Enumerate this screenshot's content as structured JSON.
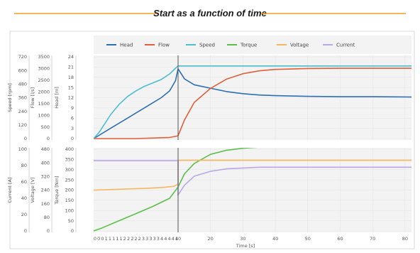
{
  "title": "Start as a function of time",
  "colors": {
    "title_rule": "#f0a020",
    "head": "#2c6fb5",
    "flow": "#e0603a",
    "speed": "#4dbdd0",
    "torque": "#5cbf4a",
    "voltage": "#f5b860",
    "current": "#b8a8e8",
    "panel_bg": "#f3f3f3",
    "grid": "#e3e3e3",
    "marker": "#555555"
  },
  "chart_data": {
    "type": "line",
    "legend": [
      "Head",
      "Flow",
      "Speed",
      "Torque",
      "Voltage",
      "Current"
    ],
    "legend_placement": "top",
    "x": {
      "label": "Time [s]",
      "startup_ticks": [
        "0",
        "0",
        "0",
        "1",
        "1",
        "1",
        "1",
        "1",
        "2",
        "2",
        "2",
        "2",
        "2",
        "3",
        "3",
        "3",
        "3",
        "3",
        "4",
        "4",
        "4",
        "4",
        "4"
      ],
      "ticks": [
        10,
        20,
        30,
        40,
        50,
        60,
        70,
        80
      ],
      "range": [
        0,
        82
      ]
    },
    "top_axes": [
      {
        "label": "Speed [rpm]",
        "ticks": [
          720,
          600,
          480,
          360,
          240,
          120,
          0
        ]
      },
      {
        "label": "Flow [l/s]",
        "ticks": [
          3500,
          3000,
          2500,
          2000,
          1500,
          1000,
          500,
          0.0
        ]
      },
      {
        "label": "Head [m]",
        "ticks": [
          24,
          21,
          18,
          15,
          12,
          9,
          6,
          3,
          0
        ]
      }
    ],
    "bottom_axes": [
      {
        "label": "Current [A]",
        "ticks": [
          100,
          80,
          60,
          40,
          20,
          0
        ]
      },
      {
        "label": "Voltage [V]",
        "ticks": [
          480,
          400,
          320,
          240,
          160,
          80,
          0
        ]
      },
      {
        "label": "Torque [Nm]",
        "ticks": [
          400,
          350,
          300,
          250,
          200,
          150,
          100,
          50,
          0
        ]
      }
    ],
    "series": [
      {
        "name": "Head",
        "panel": "top",
        "axis": "Head [m]",
        "startup": [
          [
            0,
            0
          ],
          [
            1,
            1.5
          ],
          [
            2,
            3
          ],
          [
            3,
            4.5
          ],
          [
            4,
            6
          ],
          [
            5,
            7.5
          ],
          [
            6,
            9
          ],
          [
            7,
            10.5
          ],
          [
            8,
            12
          ],
          [
            9,
            14
          ],
          [
            9.7,
            17
          ],
          [
            10,
            20.5
          ]
        ],
        "run": [
          [
            10,
            20.5
          ],
          [
            12,
            17.5
          ],
          [
            15,
            15.8
          ],
          [
            20,
            14.8
          ],
          [
            25,
            13.8
          ],
          [
            30,
            13.2
          ],
          [
            35,
            12.8
          ],
          [
            40,
            12.6
          ],
          [
            50,
            12.4
          ],
          [
            60,
            12.3
          ],
          [
            70,
            12.3
          ],
          [
            82,
            12.2
          ]
        ]
      },
      {
        "name": "Flow",
        "panel": "top",
        "axis": "Flow [l/s]",
        "startup": [
          [
            0,
            0
          ],
          [
            5,
            0
          ],
          [
            9,
            50
          ],
          [
            10,
            120
          ]
        ],
        "run": [
          [
            10,
            120
          ],
          [
            12,
            800
          ],
          [
            15,
            1550
          ],
          [
            20,
            2150
          ],
          [
            25,
            2550
          ],
          [
            30,
            2780
          ],
          [
            35,
            2900
          ],
          [
            40,
            2960
          ],
          [
            50,
            3000
          ],
          [
            60,
            3010
          ],
          [
            70,
            3010
          ],
          [
            82,
            3010
          ]
        ]
      },
      {
        "name": "Speed",
        "panel": "top",
        "axis": "Speed [rpm]",
        "startup": [
          [
            0,
            0
          ],
          [
            0.7,
            60
          ],
          [
            2,
            210
          ],
          [
            3,
            300
          ],
          [
            4,
            370
          ],
          [
            5,
            420
          ],
          [
            6,
            460
          ],
          [
            7,
            490
          ],
          [
            8,
            520
          ],
          [
            9,
            570
          ],
          [
            9.7,
            620
          ],
          [
            10,
            640
          ]
        ],
        "run": [
          [
            10,
            640
          ],
          [
            82,
            640
          ]
        ]
      },
      {
        "name": "Torque",
        "panel": "bottom",
        "axis": "Torque [Nm]",
        "startup": [
          [
            0,
            0
          ],
          [
            1,
            15
          ],
          [
            3,
            50
          ],
          [
            5,
            85
          ],
          [
            7,
            120
          ],
          [
            9,
            160
          ],
          [
            10,
            215
          ]
        ],
        "run": [
          [
            10,
            215
          ],
          [
            12,
            280
          ],
          [
            15,
            330
          ],
          [
            20,
            375
          ],
          [
            25,
            395
          ],
          [
            30,
            405
          ],
          [
            35,
            410
          ],
          [
            40,
            412
          ],
          [
            50,
            412
          ],
          [
            60,
            412
          ],
          [
            70,
            412
          ],
          [
            82,
            412
          ]
        ]
      },
      {
        "name": "Voltage",
        "panel": "bottom",
        "axis": "Voltage [V]",
        "startup": [
          [
            0,
            240
          ],
          [
            3,
            245
          ],
          [
            6,
            250
          ],
          [
            8,
            255
          ],
          [
            9.5,
            262
          ],
          [
            10,
            275
          ]
        ],
        "run": [
          [
            10,
            415
          ],
          [
            82,
            415
          ]
        ]
      },
      {
        "name": "Current",
        "panel": "bottom",
        "axis": "Current [A]",
        "startup": [
          [
            0,
            86
          ],
          [
            9.5,
            86
          ],
          [
            10,
            86
          ]
        ],
        "run": [
          [
            10,
            44
          ],
          [
            12,
            56
          ],
          [
            15,
            67
          ],
          [
            20,
            73
          ],
          [
            25,
            76
          ],
          [
            30,
            77
          ],
          [
            35,
            78
          ],
          [
            40,
            78
          ],
          [
            50,
            78
          ],
          [
            60,
            78
          ],
          [
            82,
            78
          ]
        ]
      }
    ]
  }
}
